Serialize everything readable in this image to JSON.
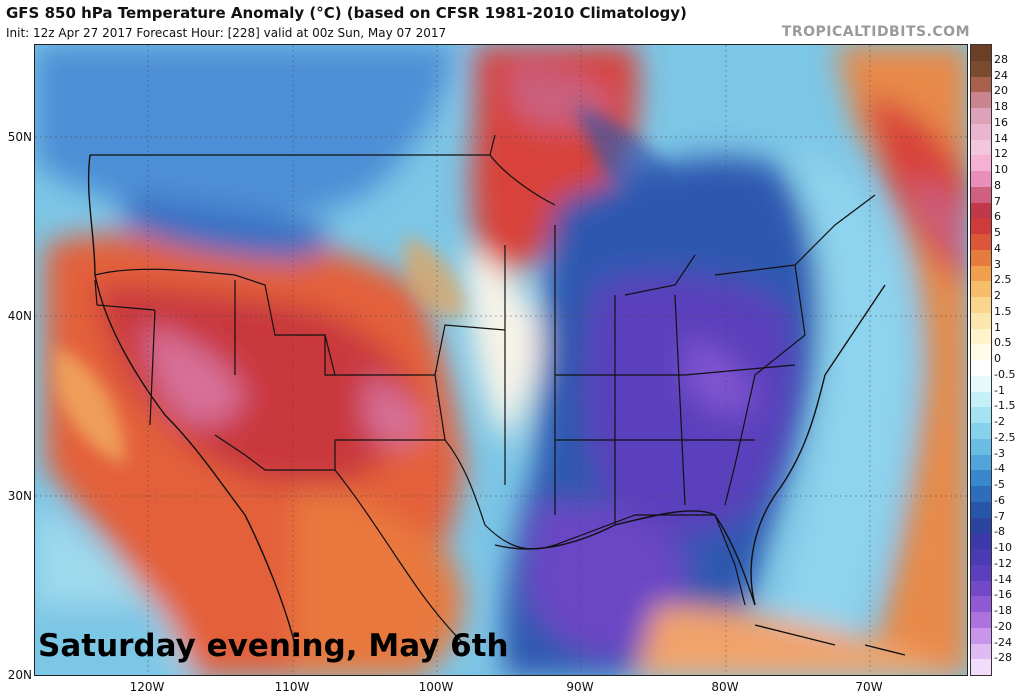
{
  "header": {
    "title": "GFS 850 hPa Temperature Anomaly (°C) (based on CFSR 1981-2010 Climatology)",
    "subtitle": "Init: 12z Apr 27 2017   Forecast Hour: [228]   valid at 00z Sun, May 07 2017",
    "brand": "TROPICALTIDBITS.COM"
  },
  "caption": "Saturday evening, May 6th",
  "axes": {
    "lat_labels": [
      "50N",
      "40N",
      "30N",
      "20N"
    ],
    "lon_labels": [
      "120W",
      "110W",
      "100W",
      "90W",
      "80W",
      "70W"
    ]
  },
  "colorbar": {
    "labels": [
      "28",
      "24",
      "20",
      "18",
      "16",
      "14",
      "12",
      "10",
      "8",
      "7",
      "6",
      "5",
      "4",
      "3",
      "2.5",
      "2",
      "1.5",
      "1",
      "0.5",
      "0",
      "-0.5",
      "-1",
      "-1.5",
      "-2",
      "-2.5",
      "-3",
      "-4",
      "-5",
      "-6",
      "-7",
      "-8",
      "-10",
      "-12",
      "-14",
      "-16",
      "-18",
      "-20",
      "-24",
      "-28"
    ],
    "colors": [
      "#7a4b2e",
      "#a8614a",
      "#c9848d",
      "#dca3b8",
      "#eab6cf",
      "#f2c6dd",
      "#f6b0d2",
      "#e88fb9",
      "#d0607f",
      "#c0394a",
      "#cf3a3a",
      "#dc5639",
      "#e67b3e",
      "#f0a04d",
      "#f6be6a",
      "#f9d68c",
      "#fbe6ad",
      "#fff3c9",
      "#fffbe6",
      "#ffffff",
      "#e6f9fb",
      "#c5f0f7",
      "#a6e3f2",
      "#86d1ec",
      "#69bde3",
      "#4fa4d9",
      "#3a88cc",
      "#2e6dbb",
      "#2756a8",
      "#2a44a0",
      "#3a3aa8",
      "#4a3bb2",
      "#5b3fbd",
      "#7449c7",
      "#8f5ad3",
      "#ac73df",
      "#c795ea",
      "#dfbbf3",
      "#f1dcfb"
    ]
  },
  "legend": {
    "warm_color": "#d8433a",
    "cold_color": "#4a3fb8",
    "neutral_color": "#ffffff"
  }
}
